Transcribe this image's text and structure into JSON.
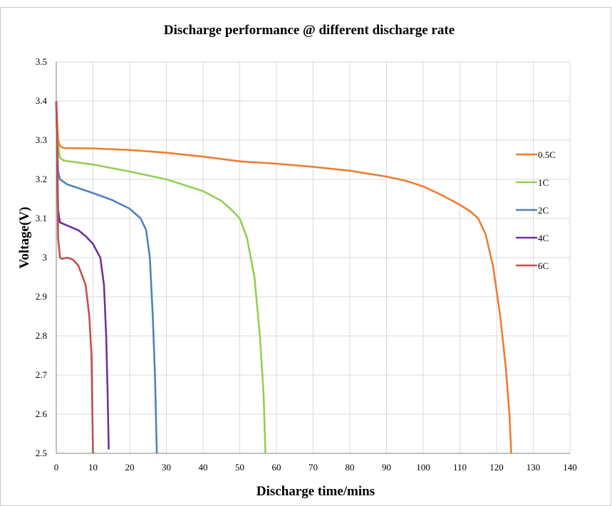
{
  "chart_data": {
    "type": "line",
    "title": "Discharge performance @ different discharge rate",
    "xlabel": "Discharge time/mins",
    "ylabel": "Voltage(V)",
    "xlim": [
      0,
      140
    ],
    "ylim": [
      2.5,
      3.5
    ],
    "x_ticks": [
      0,
      10,
      20,
      30,
      40,
      50,
      60,
      70,
      80,
      90,
      100,
      110,
      120,
      130,
      140
    ],
    "y_ticks": [
      2.5,
      2.6,
      2.7,
      2.8,
      2.9,
      3,
      3.1,
      3.2,
      3.3,
      3.4,
      3.5
    ],
    "y_tick_labels": [
      "2.5",
      "2.6",
      "2.7",
      "2.8",
      "2.9",
      "3",
      "3.1",
      "3.2",
      "3.3",
      "3.4",
      "3.5"
    ],
    "grid": true,
    "legend_position": "right",
    "series": [
      {
        "name": "0.5C",
        "color": "#ED7D31",
        "points": [
          [
            0,
            3.4
          ],
          [
            0.5,
            3.3
          ],
          [
            1,
            3.285
          ],
          [
            2,
            3.28
          ],
          [
            10,
            3.279
          ],
          [
            20,
            3.275
          ],
          [
            30,
            3.268
          ],
          [
            40,
            3.258
          ],
          [
            50,
            3.246
          ],
          [
            60,
            3.24
          ],
          [
            70,
            3.232
          ],
          [
            80,
            3.222
          ],
          [
            90,
            3.207
          ],
          [
            95,
            3.197
          ],
          [
            100,
            3.182
          ],
          [
            105,
            3.16
          ],
          [
            110,
            3.135
          ],
          [
            113,
            3.117
          ],
          [
            115,
            3.1
          ],
          [
            117,
            3.06
          ],
          [
            119,
            2.98
          ],
          [
            121,
            2.85
          ],
          [
            122.5,
            2.72
          ],
          [
            123.5,
            2.6
          ],
          [
            124,
            2.5
          ]
        ]
      },
      {
        "name": "1C",
        "color": "#92D050",
        "points": [
          [
            0,
            3.4
          ],
          [
            0.3,
            3.3
          ],
          [
            1,
            3.255
          ],
          [
            2,
            3.248
          ],
          [
            10,
            3.238
          ],
          [
            20,
            3.22
          ],
          [
            30,
            3.2
          ],
          [
            40,
            3.17
          ],
          [
            45,
            3.145
          ],
          [
            48,
            3.12
          ],
          [
            50,
            3.1
          ],
          [
            52,
            3.05
          ],
          [
            54,
            2.95
          ],
          [
            55.5,
            2.8
          ],
          [
            56.5,
            2.65
          ],
          [
            57,
            2.5
          ]
        ]
      },
      {
        "name": "2C",
        "color": "#4F81BD",
        "points": [
          [
            0,
            3.4
          ],
          [
            0.2,
            3.3
          ],
          [
            0.5,
            3.22
          ],
          [
            1,
            3.2
          ],
          [
            3,
            3.187
          ],
          [
            10,
            3.165
          ],
          [
            15,
            3.148
          ],
          [
            20,
            3.125
          ],
          [
            23,
            3.1
          ],
          [
            24.5,
            3.07
          ],
          [
            25.5,
            3.0
          ],
          [
            26.3,
            2.85
          ],
          [
            26.9,
            2.7
          ],
          [
            27.4,
            2.5
          ]
        ]
      },
      {
        "name": "4C",
        "color": "#7030A0",
        "points": [
          [
            0,
            3.4
          ],
          [
            0.2,
            3.3
          ],
          [
            0.5,
            3.12
          ],
          [
            1,
            3.09
          ],
          [
            3,
            3.082
          ],
          [
            6,
            3.07
          ],
          [
            8,
            3.055
          ],
          [
            10,
            3.035
          ],
          [
            12,
            3.0
          ],
          [
            13,
            2.93
          ],
          [
            13.6,
            2.8
          ],
          [
            14,
            2.65
          ],
          [
            14.3,
            2.51
          ]
        ]
      },
      {
        "name": "6C",
        "color": "#C0504D",
        "points": [
          [
            0,
            3.4
          ],
          [
            0.2,
            3.3
          ],
          [
            0.5,
            3.05
          ],
          [
            1,
            3.0
          ],
          [
            1.5,
            2.997
          ],
          [
            3,
            3.0
          ],
          [
            4.5,
            2.995
          ],
          [
            6,
            2.98
          ],
          [
            8,
            2.93
          ],
          [
            9,
            2.85
          ],
          [
            9.6,
            2.75
          ],
          [
            10,
            2.5
          ]
        ]
      }
    ]
  }
}
